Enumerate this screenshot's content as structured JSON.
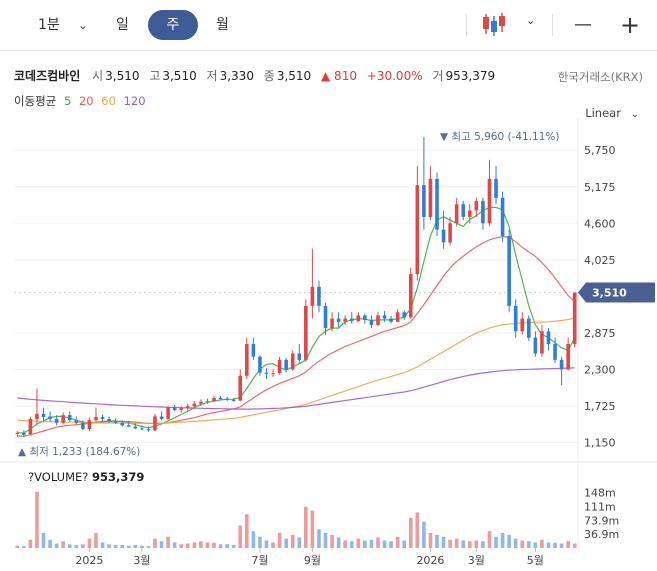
{
  "toolbar": {
    "interval": "1분",
    "tabs": [
      "일",
      "주",
      "월"
    ],
    "minus": "—",
    "plus": "+"
  },
  "stock": {
    "name": "코데즈컴바인",
    "open_label": "시",
    "open": "3,510",
    "high_label": "고",
    "high": "3,510",
    "low_label": "저",
    "low": "3,330",
    "close_label": "종",
    "close": "3,510",
    "change": "▲ 810",
    "change_pct": "+30.00%",
    "volume_label": "거",
    "volume": "953,379",
    "exchange": "한국거래소(KRX)"
  },
  "moving_average": {
    "label": "이동평균",
    "periods": [
      {
        "label": "5",
        "color": "#3cae3c"
      },
      {
        "label": "20",
        "color": "#ef5a5a"
      },
      {
        "label": "60",
        "color": "#f0a34a"
      },
      {
        "label": "120",
        "color": "#9b5ad6"
      }
    ]
  },
  "scale_mode": "Linear",
  "colors": {
    "up": "#e04848",
    "down": "#2f7fd8",
    "accent": "#3f5b96"
  },
  "chart_data": {
    "type": "candlestick",
    "y_ticks": [
      1150,
      1725,
      2300,
      2875,
      4025,
      4600,
      5175,
      5750
    ],
    "y_tick_labels": [
      "1,150",
      "1,725",
      "2,300",
      "2,875",
      "4,025",
      "4,600",
      "5,175",
      "5,750"
    ],
    "ylim": [
      1000,
      6100
    ],
    "x_ticks": [
      {
        "label": "2025",
        "index": 11
      },
      {
        "label": "3월",
        "index": 19
      },
      {
        "label": "7월",
        "index": 37
      },
      {
        "label": "9월",
        "index": 45
      },
      {
        "label": "2026",
        "index": 63
      },
      {
        "label": "3월",
        "index": 70
      },
      {
        "label": "5월",
        "index": 79
      }
    ],
    "last_price_label": "3,510",
    "max_annotation": "▼ 최고 5,960 (-41.11%)",
    "min_annotation": "▲ 최저 1,233 (184.67%)",
    "volume_title": "?VOLUME?",
    "volume_value": "953,379",
    "volume_ticks": [
      {
        "label": "148m",
        "value": 148
      },
      {
        "label": "111m",
        "value": 111
      },
      {
        "label": "73.9m",
        "value": 73.9
      },
      {
        "label": "36.9m",
        "value": 36.9
      }
    ],
    "volume_max": 160,
    "candles": [
      [
        1290,
        1330,
        1240,
        1300,
        6
      ],
      [
        1300,
        1340,
        1233,
        1270,
        5
      ],
      [
        1280,
        1550,
        1260,
        1520,
        22
      ],
      [
        1520,
        2000,
        1420,
        1600,
        150
      ],
      [
        1600,
        1700,
        1480,
        1550,
        40
      ],
      [
        1560,
        1640,
        1480,
        1520,
        22
      ],
      [
        1520,
        1580,
        1420,
        1460,
        12
      ],
      [
        1460,
        1620,
        1440,
        1580,
        18
      ],
      [
        1580,
        1640,
        1480,
        1500,
        10
      ],
      [
        1500,
        1560,
        1440,
        1460,
        8
      ],
      [
        1460,
        1500,
        1340,
        1360,
        10
      ],
      [
        1360,
        1540,
        1330,
        1500,
        25
      ],
      [
        1500,
        1700,
        1480,
        1550,
        40
      ],
      [
        1550,
        1590,
        1480,
        1520,
        15
      ],
      [
        1520,
        1560,
        1460,
        1480,
        10
      ],
      [
        1480,
        1530,
        1440,
        1460,
        8
      ],
      [
        1460,
        1500,
        1400,
        1420,
        8
      ],
      [
        1420,
        1480,
        1390,
        1400,
        6
      ],
      [
        1400,
        1450,
        1360,
        1370,
        8
      ],
      [
        1370,
        1420,
        1340,
        1360,
        6
      ],
      [
        1360,
        1400,
        1320,
        1340,
        5
      ],
      [
        1340,
        1600,
        1330,
        1560,
        25
      ],
      [
        1560,
        1640,
        1500,
        1520,
        18
      ],
      [
        1520,
        1720,
        1510,
        1700,
        30
      ],
      [
        1700,
        1740,
        1640,
        1660,
        15
      ],
      [
        1660,
        1720,
        1620,
        1690,
        10
      ],
      [
        1690,
        1760,
        1650,
        1720,
        12
      ],
      [
        1720,
        1800,
        1680,
        1760,
        15
      ],
      [
        1760,
        1830,
        1720,
        1790,
        18
      ],
      [
        1790,
        1840,
        1760,
        1800,
        15
      ],
      [
        1800,
        1880,
        1790,
        1850,
        14
      ],
      [
        1850,
        1880,
        1810,
        1840,
        10
      ],
      [
        1840,
        1870,
        1800,
        1820,
        10
      ],
      [
        1820,
        1850,
        1790,
        1810,
        8
      ],
      [
        1810,
        2300,
        1800,
        2200,
        60
      ],
      [
        2200,
        2800,
        2150,
        2700,
        90
      ],
      [
        2700,
        2800,
        2450,
        2500,
        45
      ],
      [
        2500,
        2520,
        2200,
        2250,
        30
      ],
      [
        2250,
        2320,
        2150,
        2230,
        20
      ],
      [
        2230,
        2300,
        2180,
        2240,
        15
      ],
      [
        2240,
        2500,
        2220,
        2450,
        40
      ],
      [
        2450,
        2480,
        2250,
        2300,
        25
      ],
      [
        2300,
        2600,
        2280,
        2550,
        35
      ],
      [
        2550,
        2700,
        2400,
        2450,
        28
      ],
      [
        2450,
        3400,
        2420,
        3300,
        110
      ],
      [
        3300,
        4200,
        3100,
        3600,
        100
      ],
      [
        3600,
        3700,
        3200,
        3300,
        50
      ],
      [
        3300,
        3350,
        2850,
        2950,
        40
      ],
      [
        2950,
        3200,
        2900,
        3100,
        35
      ],
      [
        3100,
        3200,
        2950,
        3050,
        28
      ],
      [
        3050,
        3150,
        3000,
        3100,
        20
      ],
      [
        3100,
        3200,
        3020,
        3060,
        18
      ],
      [
        3060,
        3200,
        3040,
        3150,
        25
      ],
      [
        3150,
        3180,
        3020,
        3080,
        20
      ],
      [
        3080,
        3150,
        2950,
        3000,
        22
      ],
      [
        3000,
        3200,
        2980,
        3150,
        28
      ],
      [
        3150,
        3220,
        3050,
        3100,
        20
      ],
      [
        3100,
        3140,
        3020,
        3050,
        18
      ],
      [
        3050,
        3250,
        3040,
        3200,
        30
      ],
      [
        3200,
        3230,
        3080,
        3120,
        20
      ],
      [
        3120,
        3900,
        3100,
        3800,
        80
      ],
      [
        3800,
        5500,
        3700,
        5200,
        95
      ],
      [
        5200,
        5960,
        4500,
        4700,
        70
      ],
      [
        4700,
        5500,
        4650,
        5300,
        40
      ],
      [
        5300,
        5400,
        4400,
        4500,
        35
      ],
      [
        4500,
        4800,
        4200,
        4300,
        30
      ],
      [
        4300,
        4700,
        4250,
        4600,
        22
      ],
      [
        4600,
        5000,
        4550,
        4900,
        25
      ],
      [
        4900,
        4950,
        4650,
        4700,
        20
      ],
      [
        4700,
        4900,
        4600,
        4800,
        18
      ],
      [
        4800,
        5000,
        4700,
        4950,
        20
      ],
      [
        4950,
        5000,
        4500,
        4600,
        18
      ],
      [
        4600,
        5600,
        4550,
        5300,
        45
      ],
      [
        5300,
        5500,
        4900,
        5000,
        30
      ],
      [
        5000,
        5100,
        4300,
        4400,
        40
      ],
      [
        4400,
        4500,
        3200,
        3300,
        35
      ],
      [
        3300,
        3400,
        2800,
        2900,
        25
      ],
      [
        2900,
        3200,
        2850,
        3100,
        20
      ],
      [
        3100,
        3150,
        2750,
        2800,
        18
      ],
      [
        2800,
        2900,
        2500,
        2550,
        15
      ],
      [
        2550,
        3000,
        2500,
        2900,
        22
      ],
      [
        2900,
        2950,
        2600,
        2700,
        15
      ],
      [
        2700,
        2800,
        2400,
        2450,
        14
      ],
      [
        2450,
        2500,
        2050,
        2300,
        12
      ],
      [
        2300,
        2800,
        2280,
        2700,
        18
      ],
      [
        2700,
        3510,
        2650,
        3510,
        12
      ]
    ],
    "ma5": [
      1300,
      1300,
      1360,
      1440,
      1490,
      1540,
      1560,
      1560,
      1530,
      1500,
      1470,
      1460,
      1470,
      1480,
      1490,
      1490,
      1480,
      1460,
      1430,
      1400,
      1380,
      1410,
      1440,
      1490,
      1540,
      1590,
      1640,
      1700,
      1750,
      1780,
      1800,
      1820,
      1830,
      1830,
      1860,
      2000,
      2160,
      2300,
      2380,
      2390,
      2330,
      2290,
      2340,
      2390,
      2450,
      2650,
      2820,
      2900,
      2950,
      2950,
      3050,
      3080,
      3100,
      3090,
      3070,
      3080,
      3080,
      3080,
      3100,
      3120,
      3260,
      3580,
      4000,
      4400,
      4650,
      4700,
      4650,
      4600,
      4550,
      4660,
      4720,
      4800,
      4850,
      4850,
      4810,
      4550,
      4100,
      3700,
      3300,
      3000,
      2850,
      2800,
      2720,
      2640,
      2600,
      2800
    ],
    "ma20": [
      1250,
      1250,
      1270,
      1300,
      1330,
      1360,
      1390,
      1410,
      1420,
      1430,
      1440,
      1450,
      1460,
      1470,
      1480,
      1480,
      1480,
      1480,
      1470,
      1460,
      1450,
      1450,
      1450,
      1460,
      1480,
      1500,
      1520,
      1540,
      1570,
      1600,
      1620,
      1640,
      1660,
      1680,
      1710,
      1780,
      1850,
      1920,
      1980,
      2030,
      2080,
      2120,
      2160,
      2200,
      2260,
      2350,
      2430,
      2500,
      2560,
      2610,
      2660,
      2700,
      2740,
      2780,
      2820,
      2860,
      2900,
      2930,
      2960,
      2990,
      3050,
      3180,
      3320,
      3470,
      3620,
      3770,
      3900,
      4000,
      4080,
      4160,
      4230,
      4290,
      4340,
      4370,
      4390,
      4380,
      4310,
      4220,
      4150,
      4080,
      3980,
      3870,
      3740,
      3600,
      3460,
      3370
    ],
    "ma60": [
      1500,
      1495,
      1490,
      1485,
      1480,
      1478,
      1475,
      1472,
      1470,
      1468,
      1465,
      1462,
      1460,
      1458,
      1456,
      1455,
      1454,
      1453,
      1452,
      1451,
      1450,
      1452,
      1455,
      1460,
      1465,
      1470,
      1476,
      1482,
      1490,
      1498,
      1506,
      1514,
      1522,
      1530,
      1545,
      1565,
      1585,
      1605,
      1625,
      1645,
      1665,
      1685,
      1705,
      1725,
      1750,
      1785,
      1820,
      1855,
      1890,
      1925,
      1960,
      1995,
      2030,
      2065,
      2100,
      2130,
      2160,
      2190,
      2220,
      2250,
      2290,
      2340,
      2400,
      2460,
      2520,
      2580,
      2640,
      2700,
      2760,
      2820,
      2870,
      2910,
      2950,
      2980,
      3000,
      3015,
      3025,
      3030,
      3035,
      3040,
      3045,
      3050,
      3060,
      3070,
      3085,
      3105
    ],
    "ma120": [
      1850,
      1840,
      1830,
      1820,
      1812,
      1805,
      1798,
      1791,
      1784,
      1777,
      1770,
      1764,
      1758,
      1752,
      1746,
      1740,
      1735,
      1730,
      1725,
      1720,
      1716,
      1712,
      1708,
      1704,
      1700,
      1697,
      1694,
      1691,
      1688,
      1685,
      1683,
      1681,
      1679,
      1677,
      1676,
      1676,
      1677,
      1679,
      1682,
      1686,
      1690,
      1696,
      1702,
      1710,
      1720,
      1735,
      1750,
      1765,
      1780,
      1795,
      1810,
      1825,
      1840,
      1855,
      1870,
      1885,
      1900,
      1915,
      1930,
      1945,
      1965,
      1990,
      2020,
      2050,
      2080,
      2110,
      2140,
      2165,
      2190,
      2210,
      2228,
      2244,
      2258,
      2270,
      2280,
      2288,
      2294,
      2298,
      2302,
      2305,
      2308,
      2311,
      2314,
      2317,
      2320,
      2325
    ]
  }
}
